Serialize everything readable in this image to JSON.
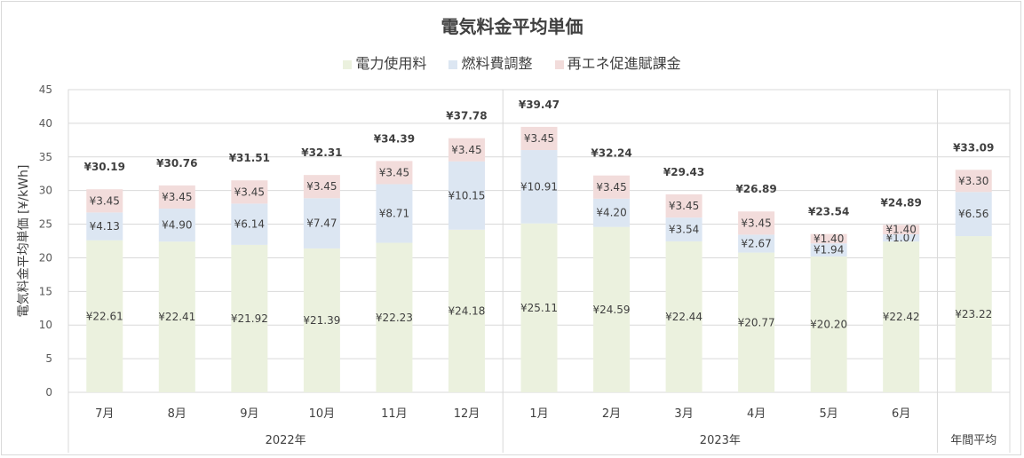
{
  "chart_data": {
    "type": "bar",
    "stacked": true,
    "title": "電気料金平均単価",
    "ylabel": "電気料金平均単価 [¥/kWh]",
    "ylim": [
      0,
      45
    ],
    "yticks": [
      0,
      5,
      10,
      15,
      20,
      25,
      30,
      35,
      40,
      45
    ],
    "grid": true,
    "legend_position": "top",
    "categories": [
      "7月",
      "8月",
      "9月",
      "10月",
      "11月",
      "12月",
      "1月",
      "2月",
      "3月",
      "4月",
      "5月",
      "6月",
      ""
    ],
    "groups": [
      {
        "label": "2022年",
        "span": 6
      },
      {
        "label": "2023年",
        "span": 6
      },
      {
        "label": "年間平均",
        "span": 1
      }
    ],
    "series": [
      {
        "name": "電力使用料",
        "color": "#ebf1de",
        "values": [
          22.61,
          22.41,
          21.92,
          21.39,
          22.23,
          24.18,
          25.11,
          24.59,
          22.44,
          20.77,
          20.2,
          22.42,
          23.22
        ],
        "labels": [
          "¥22.61",
          "¥22.41",
          "¥21.92",
          "¥21.39",
          "¥22.23",
          "¥24.18",
          "¥25.11",
          "¥24.59",
          "¥22.44",
          "¥20.77",
          "¥20.20",
          "¥22.42",
          "¥23.22"
        ]
      },
      {
        "name": "燃料費調整",
        "color": "#dce6f2",
        "values": [
          4.13,
          4.9,
          6.14,
          7.47,
          8.71,
          10.15,
          10.91,
          4.2,
          3.54,
          2.67,
          1.94,
          1.07,
          6.56
        ],
        "labels": [
          "¥4.13",
          "¥4.90",
          "¥6.14",
          "¥7.47",
          "¥8.71",
          "¥10.15",
          "¥10.91",
          "¥4.20",
          "¥3.54",
          "¥2.67",
          "¥1.94",
          "¥1.07",
          "¥6.56"
        ]
      },
      {
        "name": "再エネ促進賦課金",
        "color": "#f2dcdb",
        "values": [
          3.45,
          3.45,
          3.45,
          3.45,
          3.45,
          3.45,
          3.45,
          3.45,
          3.45,
          3.45,
          1.4,
          1.4,
          3.3
        ],
        "labels": [
          "¥3.45",
          "¥3.45",
          "¥3.45",
          "¥3.45",
          "¥3.45",
          "¥3.45",
          "¥3.45",
          "¥3.45",
          "¥3.45",
          "¥3.45",
          "¥1.40",
          "¥1.40",
          "¥3.30"
        ]
      }
    ],
    "totals": [
      "¥30.19",
      "¥30.76",
      "¥31.51",
      "¥32.31",
      "¥34.39",
      "¥37.78",
      "¥39.47",
      "¥32.24",
      "¥29.43",
      "¥26.89",
      "¥23.54",
      "¥24.89",
      "¥33.09"
    ]
  }
}
